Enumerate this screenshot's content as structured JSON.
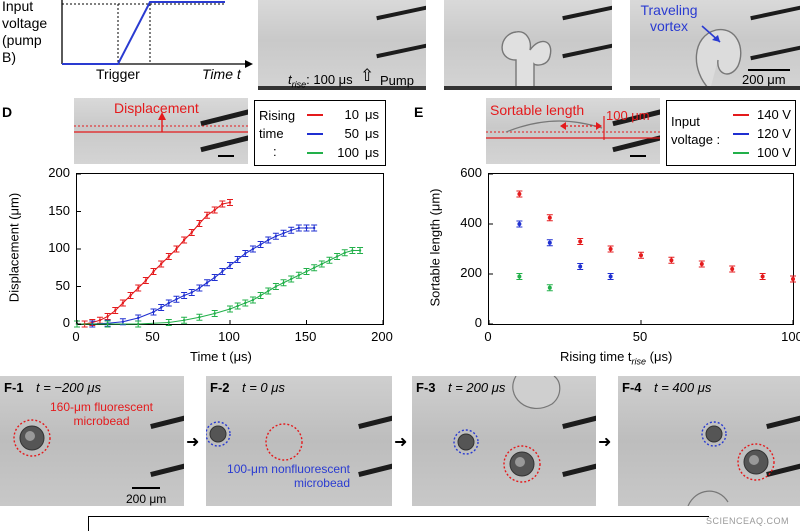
{
  "top": {
    "input_voltage_label": "Input voltage (pump B)",
    "trigger_label": "Trigger",
    "time_label": "Time t",
    "trise_label": "t",
    "trise_sub": "rise",
    "trise_value": ": 100 μs",
    "pump_label": "Pump B",
    "traveling_vortex": "Traveling vortex",
    "scale_200": "200 μm"
  },
  "panel_d": {
    "letter": "D",
    "displacement_label": "Displacement",
    "legend_title_1": "Rising",
    "legend_title_2": "time",
    "legend_colon": ":",
    "legend_items": [
      {
        "label": "10",
        "unit": "μs",
        "color": "#e41a1c"
      },
      {
        "label": "50",
        "unit": "μs",
        "color": "#1f2fd1"
      },
      {
        "label": "100",
        "unit": "μs",
        "color": "#22b04a"
      }
    ],
    "ylabel": "Displacement (μm)",
    "xlabel": "Time t (μs)",
    "xticks": [
      "0",
      "50",
      "100",
      "150",
      "200"
    ],
    "yticks": [
      "0",
      "50",
      "100",
      "150",
      "200"
    ]
  },
  "panel_e": {
    "letter": "E",
    "sortable_length_label": "Sortable length",
    "hundred_um": "100 μm",
    "legend_title_1": "Input",
    "legend_title_2": "voltage :",
    "legend_items": [
      {
        "label": "140 V",
        "color": "#e41a1c"
      },
      {
        "label": "120 V",
        "color": "#1f2fd1"
      },
      {
        "label": "100 V",
        "color": "#22b04a"
      }
    ],
    "ylabel": "Sortable length (μm)",
    "xlabel": "Rising time t",
    "xlabel_sub": "rise",
    "xlabel_unit": " (μs)",
    "xticks": [
      "0",
      "50",
      "100"
    ],
    "yticks": [
      "0",
      "200",
      "400",
      "600"
    ]
  },
  "panel_f": {
    "frames": [
      {
        "id": "F-1",
        "time": "t = −200 μs"
      },
      {
        "id": "F-2",
        "time": "t = 0 μs"
      },
      {
        "id": "F-3",
        "time": "t = 200 μs"
      },
      {
        "id": "F-4",
        "time": "t = 400 μs"
      }
    ],
    "fluorescent_label_1": "160-μm fluorescent",
    "fluorescent_label_2": "microbead",
    "nonfluorescent_label_1": "100-μm nonfluorescent",
    "nonfluorescent_label_2": "microbead",
    "scale_label": "200 μm"
  },
  "watermark": "SCIENCEAQ.COM",
  "chart_data": [
    {
      "type": "line",
      "panel": "D",
      "xlabel": "Time t (μs)",
      "ylabel": "Displacement (μm)",
      "xlim": [
        0,
        200
      ],
      "ylim": [
        0,
        200
      ],
      "legend_title": "Rising time :",
      "series": [
        {
          "name": "10 μs",
          "color": "#e41a1c",
          "x": [
            0,
            5,
            10,
            15,
            20,
            25,
            30,
            35,
            40,
            45,
            50,
            55,
            60,
            65,
            70,
            75,
            80,
            85,
            90,
            95,
            100
          ],
          "y": [
            0,
            0,
            2,
            5,
            10,
            18,
            28,
            38,
            48,
            58,
            70,
            80,
            90,
            100,
            112,
            122,
            134,
            145,
            152,
            160,
            162
          ]
        },
        {
          "name": "50 μs",
          "color": "#1f2fd1",
          "x": [
            0,
            10,
            20,
            30,
            40,
            50,
            55,
            60,
            65,
            70,
            75,
            80,
            85,
            90,
            95,
            100,
            105,
            110,
            115,
            120,
            125,
            130,
            135,
            140,
            145,
            150,
            155
          ],
          "y": [
            0,
            0,
            1,
            3,
            8,
            16,
            22,
            28,
            33,
            38,
            42,
            48,
            55,
            62,
            70,
            78,
            86,
            94,
            100,
            106,
            112,
            117,
            121,
            125,
            128,
            128,
            128
          ]
        },
        {
          "name": "100 μs",
          "color": "#22b04a",
          "x": [
            0,
            20,
            40,
            60,
            70,
            80,
            90,
            100,
            105,
            110,
            115,
            120,
            125,
            130,
            135,
            140,
            145,
            150,
            155,
            160,
            165,
            170,
            175,
            180,
            185
          ],
          "y": [
            0,
            0,
            0,
            2,
            5,
            9,
            14,
            20,
            24,
            28,
            32,
            38,
            44,
            50,
            55,
            60,
            65,
            70,
            75,
            80,
            85,
            90,
            95,
            98,
            98
          ]
        }
      ]
    },
    {
      "type": "scatter",
      "panel": "E",
      "xlabel": "Rising time t_rise (μs)",
      "ylabel": "Sortable length (μm)",
      "xlim": [
        0,
        100
      ],
      "ylim": [
        0,
        600
      ],
      "legend_title": "Input voltage :",
      "series": [
        {
          "name": "140 V",
          "color": "#e41a1c",
          "x": [
            10,
            20,
            30,
            40,
            50,
            60,
            70,
            80,
            90,
            100
          ],
          "y": [
            520,
            425,
            330,
            300,
            275,
            255,
            240,
            220,
            190,
            180
          ]
        },
        {
          "name": "120 V",
          "color": "#1f2fd1",
          "x": [
            10,
            20,
            30,
            40
          ],
          "y": [
            400,
            325,
            230,
            190
          ]
        },
        {
          "name": "100 V",
          "color": "#22b04a",
          "x": [
            10,
            20
          ],
          "y": [
            190,
            145
          ]
        }
      ]
    }
  ]
}
